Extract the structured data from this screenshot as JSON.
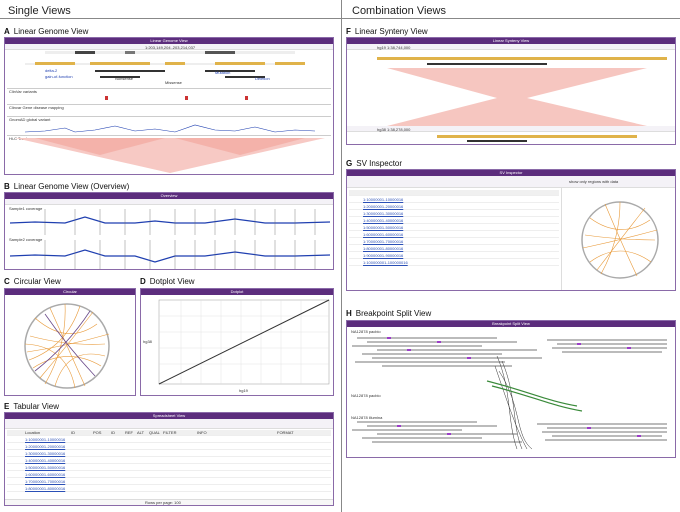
{
  "headers": {
    "left": "Single Views",
    "right": "Combination Views"
  },
  "panels": {
    "A": {
      "letter": "A",
      "title": "Linear Genome View",
      "bar": "Linear Genome View",
      "locus": "1:203,149,204..203,214,037",
      "genes": [
        "delta-2",
        "gain-of-function",
        "Mutation",
        "Deletion",
        "Nonsense",
        "Missense"
      ],
      "tracks": [
        "ClinVar variants",
        "Clinvar Gene disease mapping",
        "GnomAD global variant",
        "Hi-C Track"
      ]
    },
    "B": {
      "letter": "B",
      "title": "Linear Genome View (Overview)",
      "bar": "Overview",
      "tracks": [
        "Sample1 coverage",
        "Sample2 coverage"
      ]
    },
    "C": {
      "letter": "C",
      "title": "Circular View",
      "bar": "Circular"
    },
    "D": {
      "letter": "D",
      "title": "Dotplot View",
      "bar": "Dotplot",
      "xlabel": "hg19",
      "ylabel": "hg38"
    },
    "E": {
      "letter": "E",
      "title": "Tabular View",
      "bar": "Spreadsheet View",
      "columns": [
        "Location",
        "ID",
        "POS",
        "ID",
        "REF",
        "ALT",
        "QUAL",
        "FILTER",
        "INFO",
        "FORMAT"
      ],
      "rows": [
        "1:10000001-10000016",
        "1:20000001-20000016",
        "1:30000001-30000016",
        "1:40000001-40000016",
        "1:50000001-50000016",
        "1:60000001-60000016",
        "1:70000001-70000016",
        "1:80000001-80000016"
      ],
      "footer": "Rows per page: 100"
    },
    "F": {
      "letter": "F",
      "title": "Linear Synteny View",
      "bar": "Linear Synteny View",
      "top_locus": "hg19 1:38,744,000",
      "bottom_locus": "hg38 1:38,278,000"
    },
    "G": {
      "letter": "G",
      "title": "SV Inspector",
      "bar": "SV Inspector",
      "option": "show only regions with data",
      "rows": [
        "1:10000001-10000016",
        "1:20000001-20000016",
        "1:30000001-30000016",
        "1:40000001-40000016",
        "1:50000001-50000016",
        "1:60000001-60000016",
        "1:70000001-70000016",
        "1:80000001-80000016",
        "1:90000001-90000016",
        "1:100000001-100000016"
      ]
    },
    "H": {
      "letter": "H",
      "title": "Breakpoint Split View",
      "bar": "Breakpoint Split View",
      "tracks": [
        "NA12878 pacbio",
        "NA12878 pacbio",
        "NA12878 illumina"
      ]
    }
  },
  "colors": {
    "accent": "#5c2d7d",
    "chord": "#e89a3a",
    "coverage": "#1f3fb0",
    "synteny": "#f4b8b0"
  }
}
